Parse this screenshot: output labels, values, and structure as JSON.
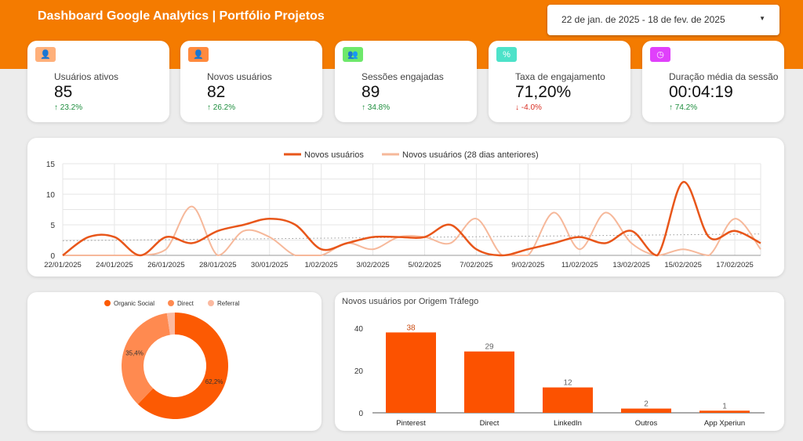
{
  "header": {
    "title": "Dashboard Google Analytics | Portfólio Projetos",
    "date_range": "22 de jan. de 2025 - 18 de fev. de 2025"
  },
  "kpis": [
    {
      "label": "Usuários ativos",
      "value": "85",
      "delta": "↑ 23.2%",
      "trend": "up",
      "icon": "user-icon",
      "color": "#ffb07a"
    },
    {
      "label": "Novos usuários",
      "value": "82",
      "delta": "↑ 26.2%",
      "trend": "up",
      "icon": "user-plus-icon",
      "color": "#ff8a3d"
    },
    {
      "label": "Sessões engajadas",
      "value": "89",
      "delta": "↑ 34.8%",
      "trend": "up",
      "icon": "users-icon",
      "color": "#6ee86b"
    },
    {
      "label": "Taxa de engajamento",
      "value": "71,20%",
      "delta": "↓ -4.0%",
      "trend": "down",
      "icon": "percent-icon",
      "color": "#4de2c9"
    },
    {
      "label": "Duração média da sessão",
      "value": "00:04:19",
      "delta": "↑ 74.2%",
      "trend": "up",
      "icon": "clock-icon",
      "color": "#e040fb"
    }
  ],
  "chart_data": [
    {
      "type": "line",
      "title": "",
      "ylim": [
        0,
        15
      ],
      "yticks": [
        0,
        5,
        10,
        15
      ],
      "x": [
        "22/01/2025",
        "23/01/2025",
        "24/01/2025",
        "25/01/2025",
        "26/01/2025",
        "27/01/2025",
        "28/01/2025",
        "29/01/2025",
        "30/01/2025",
        "31/01/2025",
        "1/02/2025",
        "2/02/2025",
        "3/02/2025",
        "4/02/2025",
        "5/02/2025",
        "6/02/2025",
        "7/02/2025",
        "8/02/2025",
        "9/02/2025",
        "10/02/2025",
        "11/02/2025",
        "12/02/2025",
        "13/02/2025",
        "14/02/2025",
        "15/02/2025",
        "16/02/2025",
        "17/02/2025",
        "18/02/2025"
      ],
      "xtick_labels": [
        "22/01/2025",
        "24/01/2025",
        "26/01/2025",
        "28/01/2025",
        "30/01/2025",
        "1/02/2025",
        "3/02/2025",
        "5/02/2025",
        "7/02/2025",
        "9/02/2025",
        "11/02/2025",
        "13/02/2025",
        "15/02/2025",
        "17/02/2025"
      ],
      "series": [
        {
          "name": "Novos usuários",
          "color": "#e8561a",
          "values": [
            0,
            3,
            3,
            0,
            3,
            2,
            4,
            5,
            6,
            5,
            1,
            2,
            3,
            3,
            3,
            5,
            1,
            0,
            1,
            2,
            3,
            2,
            4,
            0,
            12,
            3,
            4,
            2
          ]
        },
        {
          "name": "Novos usuários (28 dias anteriores)",
          "color": "#f6b89a",
          "values": [
            0,
            0,
            0,
            0,
            1,
            8,
            0,
            4,
            3,
            0,
            0,
            2,
            1,
            3,
            3,
            2,
            6,
            0,
            0,
            7,
            1,
            7,
            2,
            0,
            1,
            0,
            6,
            1
          ]
        }
      ],
      "trendline": [
        2.4,
        3.5
      ],
      "legend": "top"
    },
    {
      "type": "pie",
      "donut": true,
      "categories": [
        "Organic Social",
        "Direct",
        "Referral"
      ],
      "values": [
        62.2,
        35.4,
        2.4
      ],
      "labels": [
        "62,2%",
        "35,4%",
        ""
      ],
      "colors": [
        "#fc5a03",
        "#ff8a50",
        "#fbb9a0"
      ],
      "legend": "top"
    },
    {
      "type": "bar",
      "title": "Novos usuários por Origem Tráfego",
      "categories": [
        "Pinterest",
        "Direct",
        "LinkedIn",
        "Outros",
        "App Xperiun"
      ],
      "values": [
        38,
        29,
        12,
        2,
        1
      ],
      "ylim": [
        0,
        40
      ],
      "yticks": [
        0,
        20,
        40
      ],
      "color": "#fc5200"
    }
  ]
}
